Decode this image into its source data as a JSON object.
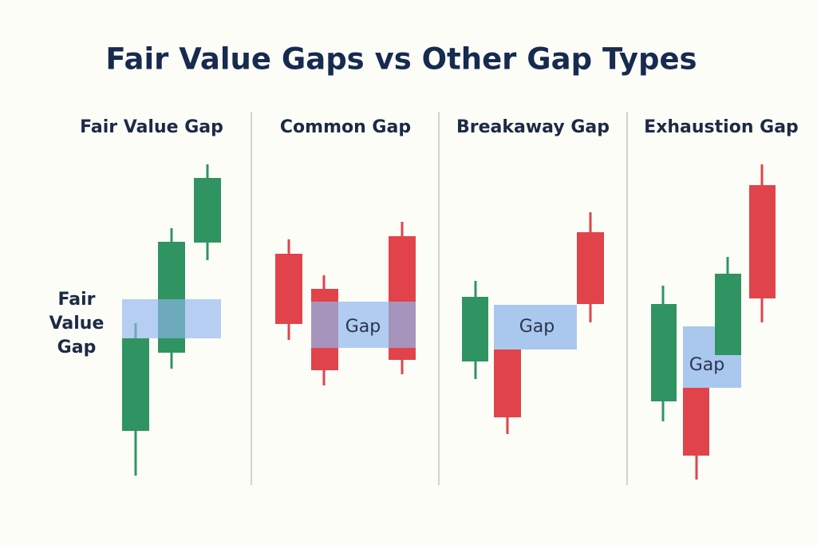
{
  "title": "Fair Value Gaps vs Other Gap Types",
  "panels": [
    {
      "title": "Fair Value Gap",
      "gap_label_lines": [
        "Fair",
        "Value",
        "Gap"
      ]
    },
    {
      "title": "Common Gap",
      "gap_label": "Gap"
    },
    {
      "title": "Breakaway Gap",
      "gap_label": "Gap"
    },
    {
      "title": "Exhaustion Gap",
      "gap_label": "Gap"
    }
  ]
}
